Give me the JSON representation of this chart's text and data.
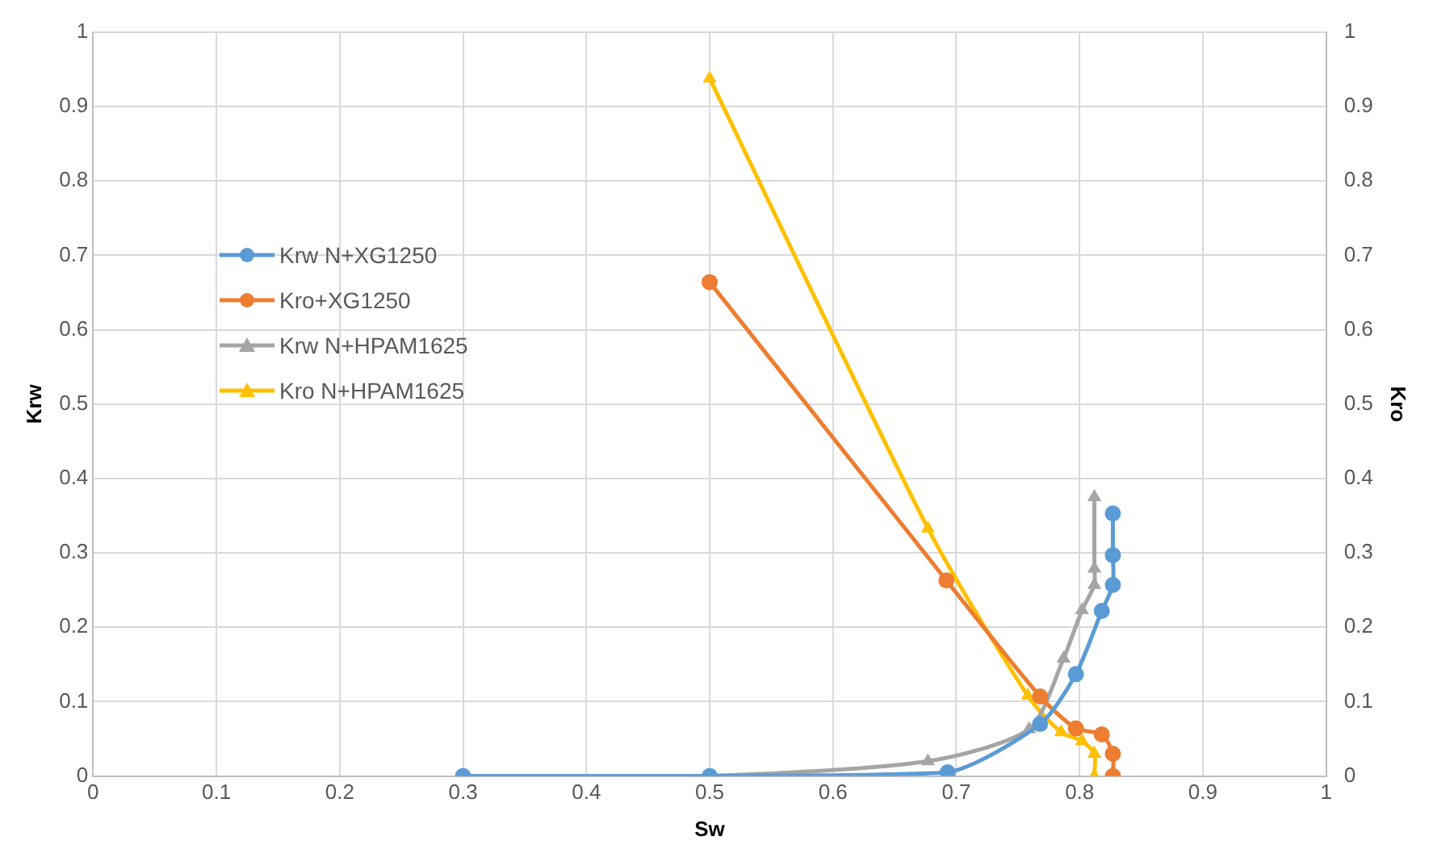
{
  "chart_data": {
    "type": "line",
    "xlabel": "Sw",
    "ylabel": "Krw",
    "y2label": "Kro",
    "xlim": [
      0,
      1
    ],
    "xticks": [
      0,
      0.1,
      0.2,
      0.3,
      0.4,
      0.5,
      0.6,
      0.7,
      0.8,
      0.9,
      1
    ],
    "ylim": [
      0,
      1
    ],
    "yticks": [
      0,
      0.1,
      0.2,
      0.3,
      0.4,
      0.5,
      0.6,
      0.7,
      0.8,
      0.9,
      1
    ],
    "y2lim": [
      0,
      1
    ],
    "y2ticks": [
      0,
      0.1,
      0.2,
      0.3,
      0.4,
      0.5,
      0.6,
      0.7,
      0.8,
      0.9,
      1
    ],
    "grid": true,
    "legend": "left",
    "line_style": "solid",
    "series": [
      {
        "name": "Krw N+XG1250",
        "color": "#5b9bd5",
        "marker": "circle",
        "x": [
          0.3,
          0.5,
          0.693,
          0.768,
          0.797,
          0.818,
          0.827,
          0.827,
          0.827
        ],
        "values": [
          0,
          0,
          0.005,
          0.07,
          0.137,
          0.222,
          0.257,
          0.297,
          0.353
        ]
      },
      {
        "name": "Kro+XG1250",
        "color": "#ed7d31",
        "marker": "circle",
        "x": [
          0.5,
          0.692,
          0.768,
          0.797,
          0.818,
          0.827,
          0.827
        ],
        "values": [
          0.664,
          0.263,
          0.107,
          0.064,
          0.056,
          0.03,
          0
        ]
      },
      {
        "name": "Krw N+HPAM1625",
        "color": "#a5a5a5",
        "marker": "triangle",
        "x": [
          0.3,
          0.5,
          0.677,
          0.759,
          0.787,
          0.802,
          0.812,
          0.812,
          0.812
        ],
        "values": [
          0,
          0,
          0.02,
          0.063,
          0.158,
          0.223,
          0.257,
          0.279,
          0.375
        ]
      },
      {
        "name": "Kro N+HPAM1625",
        "color": "#ffc000",
        "marker": "triangle",
        "x": [
          0.5,
          0.677,
          0.758,
          0.785,
          0.802,
          0.812,
          0.812
        ],
        "values": [
          0.938,
          0.333,
          0.108,
          0.059,
          0.047,
          0.03,
          0
        ]
      }
    ]
  }
}
